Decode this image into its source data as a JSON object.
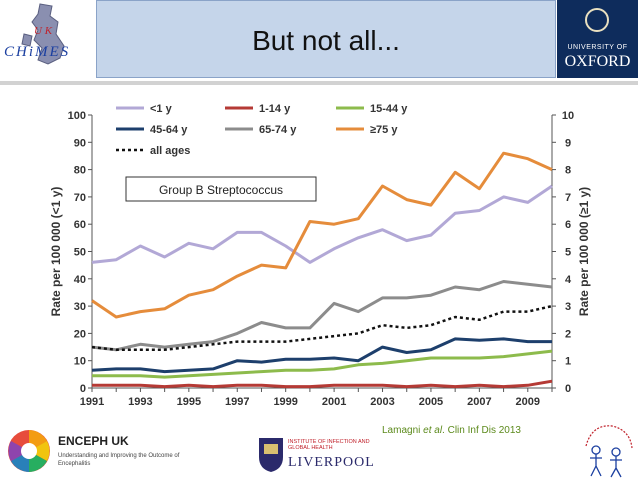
{
  "slide": {
    "title": "But not all...",
    "uk_logo_text": "UK CHIMES",
    "oxford_university": "UNIVERSITY OF",
    "oxford_name": "OXFORD",
    "citation_prefix": "Lamagni ",
    "citation_etal": "et al",
    "citation_suffix": ". Clin Inf Dis 2013",
    "enceph_title": "ENCEPH UK",
    "enceph_sub": "Understanding and Improving the Outcome of Encephalitis",
    "liverpool_inst": "INSTITUTE OF INFECTION AND GLOBAL HEALTH",
    "liverpool_name": "LIVERPOOL"
  },
  "chart_data": {
    "type": "line",
    "annotation": "Group B Streptococcus",
    "ylabel_left": "Rate per 100 000 (<1 y)",
    "ylabel_right": "Rate per 100 000 (≥1 y)",
    "ylim_left": [
      0,
      100
    ],
    "ylim_right": [
      0,
      10
    ],
    "left_ticks": [
      "0",
      "10",
      "20",
      "30",
      "40",
      "50",
      "60",
      "70",
      "80",
      "90",
      "100"
    ],
    "right_ticks": [
      "0",
      "1",
      "2",
      "3",
      "4",
      "5",
      "6",
      "7",
      "8",
      "9",
      "10"
    ],
    "x": [
      1991,
      1992,
      1993,
      1994,
      1995,
      1996,
      1997,
      1998,
      1999,
      2000,
      2001,
      2002,
      2003,
      2004,
      2005,
      2006,
      2007,
      2008,
      2009,
      2010
    ],
    "x_tick_labels": [
      "1991",
      "1993",
      "1995",
      "1997",
      "1999",
      "2001",
      "2003",
      "2005",
      "2007",
      "2009"
    ],
    "legend_position": "top",
    "series": [
      {
        "name": "<1 y",
        "axis": "left",
        "color": "#b2a8d6",
        "dash": "",
        "values": [
          46,
          47,
          52,
          48,
          53,
          51,
          57,
          57,
          52,
          46,
          51,
          55,
          58,
          54,
          56,
          64,
          65,
          70,
          68,
          74
        ]
      },
      {
        "name": "1-14 y",
        "axis": "right",
        "color": "#b53a35",
        "dash": "",
        "values": [
          0.1,
          0.1,
          0.1,
          0.05,
          0.1,
          0.05,
          0.1,
          0.1,
          0.05,
          0.05,
          0.1,
          0.1,
          0.1,
          0.05,
          0.1,
          0.05,
          0.1,
          0.05,
          0.1,
          0.25
        ]
      },
      {
        "name": "15-44 y",
        "axis": "right",
        "color": "#8dbb4c",
        "dash": "",
        "values": [
          0.45,
          0.45,
          0.45,
          0.4,
          0.45,
          0.5,
          0.55,
          0.6,
          0.65,
          0.65,
          0.7,
          0.85,
          0.9,
          1.0,
          1.1,
          1.1,
          1.1,
          1.15,
          1.25,
          1.35
        ]
      },
      {
        "name": "45-64 y",
        "axis": "right",
        "color": "#1d3f6c",
        "dash": "",
        "values": [
          0.65,
          0.7,
          0.7,
          0.6,
          0.65,
          0.7,
          1.0,
          0.95,
          1.05,
          1.05,
          1.1,
          1.0,
          1.5,
          1.3,
          1.4,
          1.8,
          1.75,
          1.8,
          1.7,
          1.7
        ]
      },
      {
        "name": "65-74 y",
        "axis": "right",
        "color": "#8c8c8c",
        "dash": "",
        "values": [
          1.5,
          1.4,
          1.6,
          1.5,
          1.6,
          1.7,
          2.0,
          2.4,
          2.2,
          2.2,
          3.1,
          2.8,
          3.3,
          3.3,
          3.4,
          3.7,
          3.6,
          3.9,
          3.8,
          3.7
        ]
      },
      {
        "name": "≥75 y",
        "axis": "right",
        "color": "#e58c3b",
        "dash": "",
        "values": [
          3.2,
          2.6,
          2.8,
          2.9,
          3.4,
          3.6,
          4.1,
          4.5,
          4.4,
          6.1,
          6.0,
          6.2,
          7.4,
          6.9,
          6.7,
          7.9,
          7.3,
          8.6,
          8.4,
          8.0
        ]
      },
      {
        "name": "all ages",
        "axis": "right",
        "color": "#111111",
        "dash": "3,3",
        "values": [
          1.5,
          1.4,
          1.4,
          1.4,
          1.5,
          1.6,
          1.7,
          1.7,
          1.7,
          1.8,
          1.9,
          2.0,
          2.3,
          2.2,
          2.3,
          2.6,
          2.5,
          2.8,
          2.8,
          3.0
        ]
      }
    ]
  }
}
